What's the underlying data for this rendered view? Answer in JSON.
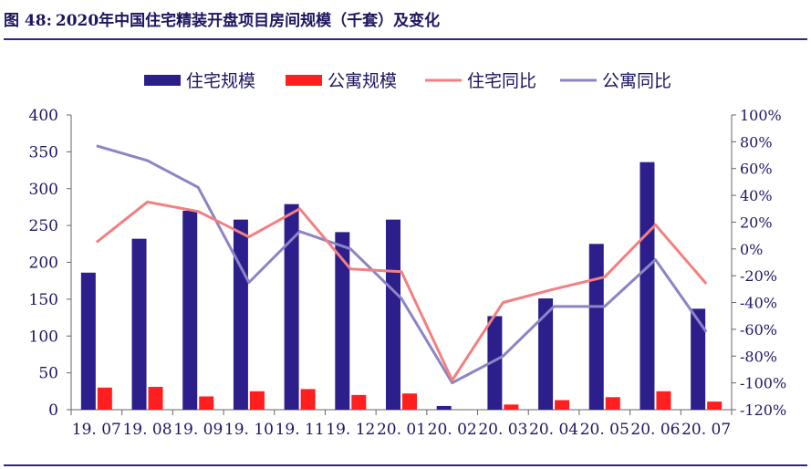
{
  "figure": {
    "label": "图 48:",
    "title": "2020年中国住宅精装开盘项目房间规模（千套）及变化"
  },
  "colors": {
    "zhuzhai_bar": "#2c1f8c",
    "gongyu_bar": "#ff1f1f",
    "zhuzhai_line": "#f28080",
    "gongyu_line": "#8c84c4",
    "rule": "#2e2785"
  },
  "chart_data": {
    "type": "bar",
    "categories": [
      "19.07",
      "19.08",
      "19.09",
      "19.10",
      "19.11",
      "19.12",
      "20.01",
      "20.02",
      "20.03",
      "20.04",
      "20.05",
      "20.06",
      "20.07"
    ],
    "category_labels": [
      "19. 07",
      "19. 08",
      "19. 09",
      "19. 10",
      "19. 11",
      "19. 12",
      "20. 01",
      "20. 02",
      "20. 03",
      "20. 04",
      "20. 05",
      "20. 06",
      "20. 07"
    ],
    "legend": [
      "住宅规模",
      "公寓规模",
      "住宅同比",
      "公寓同比"
    ],
    "legend_position": "top",
    "series": [
      {
        "name": "住宅规模",
        "type": "bar",
        "axis": "left",
        "values": [
          186,
          232,
          270,
          258,
          279,
          241,
          258,
          5,
          127,
          151,
          225,
          336,
          137
        ]
      },
      {
        "name": "公寓规模",
        "type": "bar",
        "axis": "left",
        "values": [
          30,
          31,
          18,
          25,
          28,
          20,
          22,
          0,
          7,
          13,
          17,
          25,
          11
        ]
      },
      {
        "name": "住宅同比",
        "type": "line",
        "axis": "right",
        "values": [
          5,
          35,
          28,
          9,
          30,
          -15,
          -17,
          -98,
          -40,
          -30,
          -21,
          18,
          -26
        ]
      },
      {
        "name": "公寓同比",
        "type": "line",
        "axis": "right",
        "values": [
          77,
          66,
          46,
          -25,
          13,
          0,
          -37,
          -100,
          -80,
          -43,
          -43,
          -8,
          -62
        ]
      }
    ],
    "ylim_left": [
      0,
      400
    ],
    "yticks_left": [
      "0",
      "50",
      "100",
      "150",
      "200",
      "250",
      "300",
      "350",
      "400"
    ],
    "ylim_right": [
      -120,
      100
    ],
    "yticks_right": [
      "-120%",
      "-100%",
      "-80%",
      "-60%",
      "-40%",
      "-20%",
      "0%",
      "20%",
      "40%",
      "60%",
      "80%",
      "100%"
    ],
    "grid": false
  }
}
